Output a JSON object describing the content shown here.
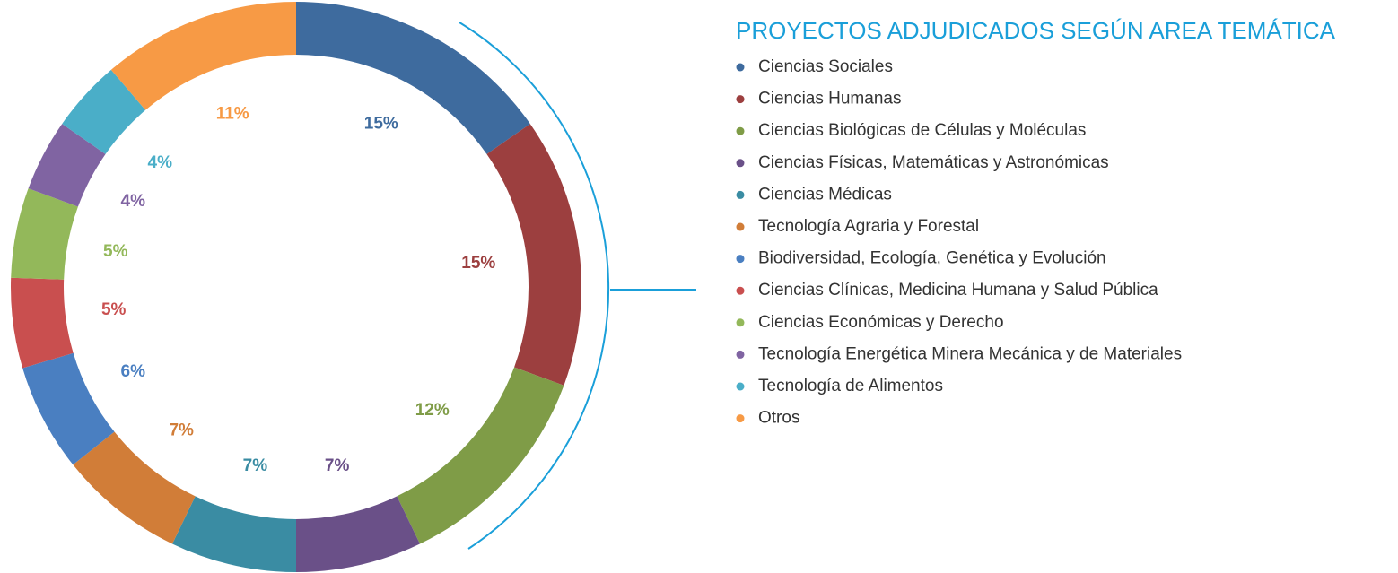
{
  "chart_data": {
    "type": "donut",
    "title": "PROYECTOS ADJUDICADOS SEGÚN AREA TEMÁTICA",
    "categories": [
      "Ciencias Sociales",
      "Ciencias Humanas",
      "Ciencias Biológicas de Células y Moléculas",
      "Ciencias Físicas, Matemáticas y Astronómicas",
      "Ciencias Médicas",
      "Tecnología Agraria y Forestal",
      "Biodiversidad, Ecología, Genética y Evolución",
      "Ciencias Clínicas, Medicina Humana y Salud Pública",
      "Ciencias Económicas y Derecho",
      "Tecnología Energética Minera Mecánica y de Materiales",
      "Tecnología de Alimentos",
      "Otros"
    ],
    "values": [
      15,
      15,
      12,
      7,
      7,
      7,
      6,
      5,
      5,
      4,
      4,
      11
    ],
    "value_labels": [
      "15%",
      "15%",
      "12%",
      "7%",
      "7%",
      "7%",
      "6%",
      "5%",
      "5%",
      "4%",
      "4%",
      "11%"
    ],
    "colors": [
      "#3e6b9e",
      "#9c3f3f",
      "#7f9c47",
      "#6a5088",
      "#3a8ca3",
      "#d17d38",
      "#4a7fc1",
      "#c94f4f",
      "#93b85a",
      "#8064a2",
      "#4aaec8",
      "#f79a45"
    ]
  }
}
